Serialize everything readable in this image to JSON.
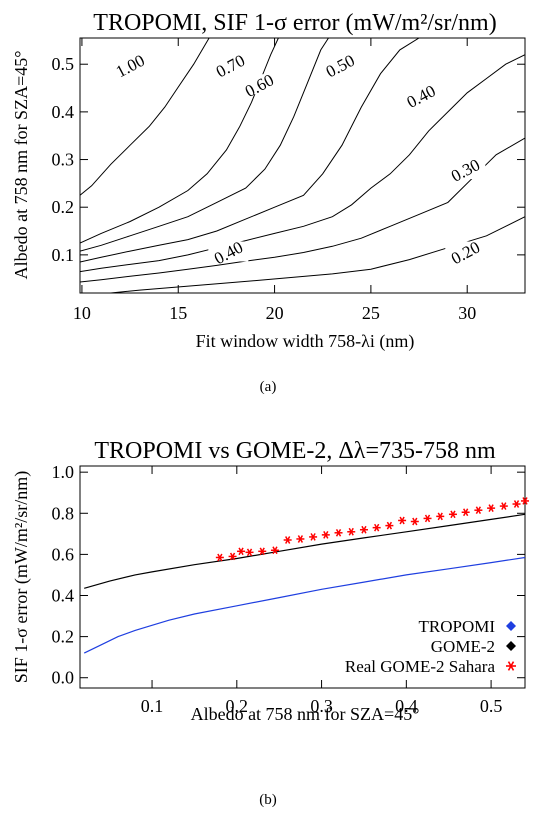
{
  "chart_data": [
    {
      "id": "a",
      "type": "contour",
      "title": "TROPOMI, SIF 1-σ error (mW/m²/sr/nm)",
      "xlabel": "Fit window width 758-λi (nm)",
      "ylabel": "Albedo at 758 nm for SZA=45°",
      "xlim": [
        9.9,
        33
      ],
      "ylim": [
        0.02,
        0.555
      ],
      "xticks": [
        10,
        15,
        20,
        25,
        30
      ],
      "yticks": [
        0.1,
        0.2,
        0.3,
        0.4,
        0.5
      ],
      "caption": "(a)",
      "contours": [
        {
          "level": "1.00",
          "points": [
            [
              9.9,
              0.225
            ],
            [
              10.5,
              0.245
            ],
            [
              11.5,
              0.29
            ],
            [
              12.5,
              0.33
            ],
            [
              13.5,
              0.37
            ],
            [
              14.3,
              0.41
            ],
            [
              15,
              0.452
            ],
            [
              15.8,
              0.5
            ],
            [
              16.6,
              0.555
            ]
          ]
        },
        {
          "level": "0.70",
          "points": [
            [
              9.9,
              0.125
            ],
            [
              11,
              0.145
            ],
            [
              12.5,
              0.17
            ],
            [
              14,
              0.2
            ],
            [
              15.5,
              0.235
            ],
            [
              16.5,
              0.27
            ],
            [
              17.5,
              0.32
            ],
            [
              18.2,
              0.37
            ],
            [
              18.8,
              0.42
            ],
            [
              19.3,
              0.47
            ],
            [
              19.8,
              0.52
            ],
            [
              20.2,
              0.555
            ]
          ]
        },
        {
          "level": "0.60",
          "points": [
            [
              9.9,
              0.108
            ],
            [
              11,
              0.12
            ],
            [
              12.5,
              0.14
            ],
            [
              14,
              0.16
            ],
            [
              15.5,
              0.18
            ],
            [
              17,
              0.21
            ],
            [
              18.5,
              0.24
            ],
            [
              19.5,
              0.28
            ],
            [
              20.3,
              0.33
            ],
            [
              21,
              0.39
            ],
            [
              21.7,
              0.46
            ],
            [
              22.4,
              0.53
            ],
            [
              22.8,
              0.555
            ]
          ]
        },
        {
          "level": "0.50",
          "points": [
            [
              9.9,
              0.085
            ],
            [
              11,
              0.095
            ],
            [
              12.5,
              0.108
            ],
            [
              14,
              0.12
            ],
            [
              15.5,
              0.132
            ],
            [
              17,
              0.15
            ],
            [
              18.5,
              0.175
            ],
            [
              20,
              0.2
            ],
            [
              21.5,
              0.225
            ],
            [
              22.5,
              0.27
            ],
            [
              23.5,
              0.33
            ],
            [
              24.5,
              0.41
            ],
            [
              25.5,
              0.48
            ],
            [
              26.5,
              0.53
            ],
            [
              27.5,
              0.555
            ]
          ]
        },
        {
          "level": "0.40",
          "points": [
            [
              9.9,
              0.065
            ],
            [
              11,
              0.072
            ],
            [
              12.5,
              0.08
            ],
            [
              14,
              0.088
            ],
            [
              15.5,
              0.1
            ],
            [
              17,
              0.115
            ],
            [
              18.5,
              0.13
            ],
            [
              20,
              0.145
            ],
            [
              21.5,
              0.16
            ],
            [
              23,
              0.18
            ],
            [
              24,
              0.205
            ],
            [
              25,
              0.24
            ],
            [
              26,
              0.27
            ],
            [
              27,
              0.31
            ],
            [
              28,
              0.36
            ],
            [
              29,
              0.4
            ],
            [
              30,
              0.44
            ],
            [
              31,
              0.47
            ],
            [
              32,
              0.5
            ],
            [
              33,
              0.52
            ]
          ]
        },
        {
          "level": "0.30",
          "points": [
            [
              9.9,
              0.043
            ],
            [
              11,
              0.048
            ],
            [
              12.5,
              0.055
            ],
            [
              14,
              0.062
            ],
            [
              15.5,
              0.07
            ],
            [
              17,
              0.078
            ],
            [
              18.5,
              0.087
            ],
            [
              20,
              0.095
            ],
            [
              21.5,
              0.105
            ],
            [
              23,
              0.118
            ],
            [
              24.5,
              0.135
            ],
            [
              26,
              0.16
            ],
            [
              27.5,
              0.185
            ],
            [
              29,
              0.21
            ],
            [
              30.5,
              0.27
            ],
            [
              31.5,
              0.31
            ],
            [
              33,
              0.345
            ]
          ]
        },
        {
          "level": "0.20",
          "points": [
            [
              11.5,
              0.02
            ],
            [
              13,
              0.026
            ],
            [
              14.5,
              0.031
            ],
            [
              16,
              0.036
            ],
            [
              17.5,
              0.041
            ],
            [
              19,
              0.046
            ],
            [
              21,
              0.053
            ],
            [
              23,
              0.06
            ],
            [
              25,
              0.07
            ],
            [
              27,
              0.09
            ],
            [
              29,
              0.115
            ],
            [
              31,
              0.14
            ],
            [
              32,
              0.16
            ],
            [
              33,
              0.18
            ]
          ]
        }
      ],
      "contour_labels": [
        {
          "text": "1.00",
          "x": 12.5,
          "y": 0.497
        },
        {
          "text": "0.70",
          "x": 17.7,
          "y": 0.497
        },
        {
          "text": "0.60",
          "x": 19.2,
          "y": 0.456
        },
        {
          "text": "0.50",
          "x": 23.4,
          "y": 0.497
        },
        {
          "text": "0.40",
          "x": 27.6,
          "y": 0.433
        },
        {
          "text": "0.30",
          "x": 29.9,
          "y": 0.278
        },
        {
          "text": "0.40",
          "x": 17.6,
          "y": 0.105
        },
        {
          "text": "0.20",
          "x": 29.9,
          "y": 0.105
        }
      ]
    },
    {
      "id": "b",
      "type": "line",
      "title": "TROPOMI vs GOME-2, Δλ=735-758 nm",
      "xlabel": "Albedo at 758 nm for SZA=45°",
      "ylabel": "SIF 1-σ error (mW/m²/sr/nm)",
      "xlim": [
        0.015,
        0.54
      ],
      "ylim": [
        -0.05,
        1.03
      ],
      "xticks": [
        0.1,
        0.2,
        0.3,
        0.4,
        0.5
      ],
      "yticks": [
        0.0,
        0.2,
        0.4,
        0.6,
        0.8,
        1.0
      ],
      "ytick_labels": [
        "0.0",
        "0.2",
        "0.4",
        "0.6",
        "0.8",
        "1.0"
      ],
      "caption": "(b)",
      "series": [
        {
          "name": "TROPOMI",
          "color": "#1f3fe0",
          "marker": "diamond",
          "x": [
            0.02,
            0.04,
            0.06,
            0.08,
            0.1,
            0.12,
            0.15,
            0.2,
            0.25,
            0.3,
            0.35,
            0.4,
            0.45,
            0.5,
            0.54
          ],
          "y": [
            0.12,
            0.16,
            0.2,
            0.23,
            0.255,
            0.28,
            0.31,
            0.35,
            0.39,
            0.43,
            0.465,
            0.5,
            0.53,
            0.56,
            0.585
          ]
        },
        {
          "name": "GOME-2",
          "color": "#000000",
          "marker": "diamond",
          "x": [
            0.02,
            0.05,
            0.08,
            0.1,
            0.15,
            0.2,
            0.25,
            0.3,
            0.35,
            0.4,
            0.45,
            0.5,
            0.54
          ],
          "y": [
            0.435,
            0.47,
            0.5,
            0.515,
            0.55,
            0.58,
            0.615,
            0.65,
            0.68,
            0.71,
            0.74,
            0.77,
            0.795
          ]
        },
        {
          "name": "Real GOME-2 Sahara",
          "color": "#ff0000",
          "marker": "asterisk",
          "x": [
            0.18,
            0.195,
            0.205,
            0.215,
            0.23,
            0.245,
            0.26,
            0.275,
            0.29,
            0.305,
            0.32,
            0.335,
            0.35,
            0.365,
            0.38,
            0.395,
            0.41,
            0.425,
            0.44,
            0.455,
            0.47,
            0.485,
            0.5,
            0.515,
            0.53,
            0.54
          ],
          "y": [
            0.585,
            0.59,
            0.615,
            0.61,
            0.615,
            0.62,
            0.67,
            0.675,
            0.685,
            0.695,
            0.705,
            0.71,
            0.72,
            0.73,
            0.74,
            0.765,
            0.76,
            0.775,
            0.785,
            0.795,
            0.805,
            0.815,
            0.825,
            0.835,
            0.845,
            0.86
          ]
        }
      ],
      "legend": "bottom-right"
    }
  ]
}
